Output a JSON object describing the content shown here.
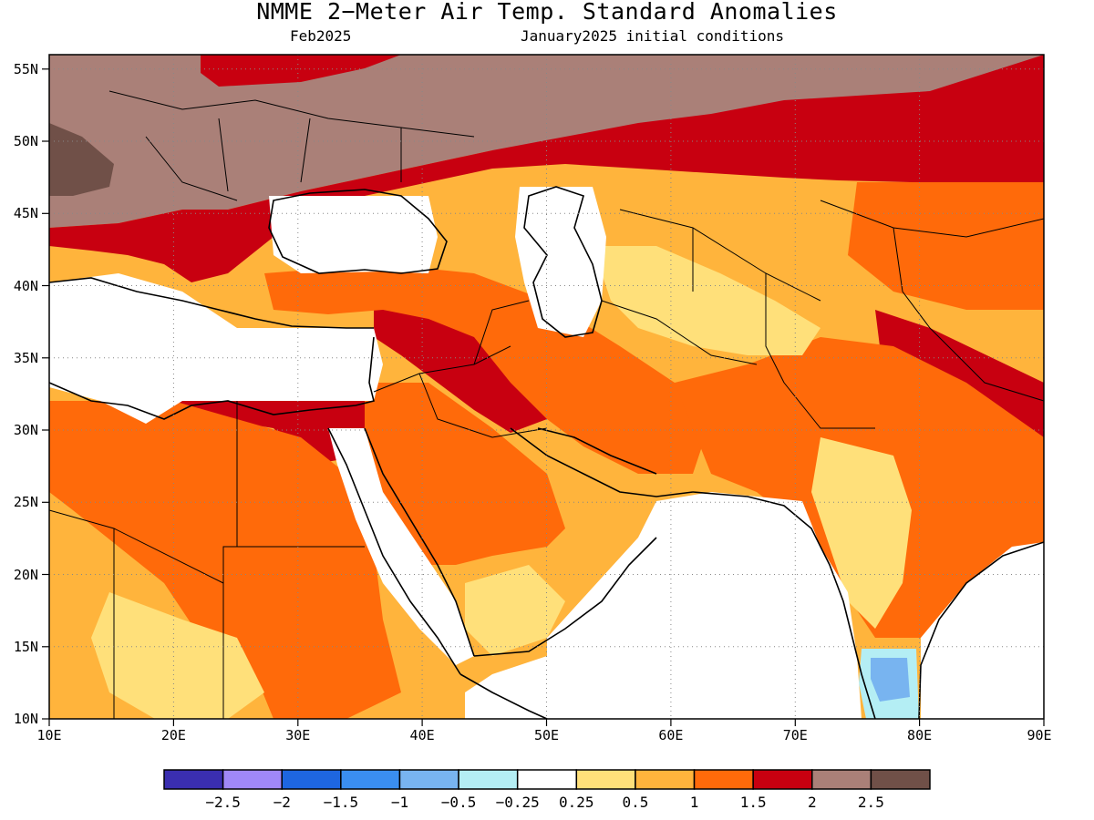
{
  "title": "NMME 2−Meter Air Temp. Standard Anomalies",
  "subtitle_left": "Feb2025",
  "subtitle_right": "January2025 initial conditions",
  "map": {
    "lon_range": [
      10,
      90
    ],
    "lat_range": [
      10,
      56
    ],
    "lon_ticks": [
      "10E",
      "20E",
      "30E",
      "40E",
      "50E",
      "60E",
      "70E",
      "80E",
      "90E"
    ],
    "lat_ticks": [
      "10N",
      "15N",
      "20N",
      "25N",
      "30N",
      "35N",
      "40N",
      "45N",
      "50N",
      "55N"
    ],
    "grid": true
  },
  "colorbar": {
    "colors": [
      "#3a2eb0",
      "#a088f8",
      "#1e66e0",
      "#3a8ef0",
      "#78b4f0",
      "#b4eef4",
      "#ffffff",
      "#ffe07a",
      "#ffb43c",
      "#ff6a0a",
      "#c80010",
      "#aa8078",
      "#705048"
    ],
    "labels": [
      "−2.5",
      "−2",
      "−1.5",
      "−1",
      "−0.5",
      "−0.25",
      "0.25",
      "0.5",
      "1",
      "1.5",
      "2",
      "2.5"
    ]
  },
  "colors": {
    "land_white": "#ffffff",
    "warm_light": "#ffe07a",
    "warm": "#ffb43c",
    "warmer": "#ff6a0a",
    "hot": "#c80010",
    "very_hot": "#aa8078",
    "extreme": "#705048",
    "cool_light": "#b4eef4",
    "cool": "#78b4f0"
  }
}
